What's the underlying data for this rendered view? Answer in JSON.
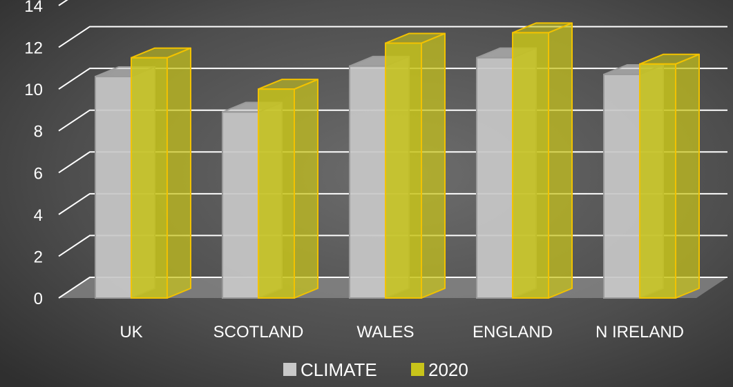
{
  "chart_data": {
    "type": "bar",
    "categories": [
      "UK",
      "SCOTLAND",
      "WALES",
      "ENGLAND",
      "N IRELAND"
    ],
    "series": [
      {
        "name": "CLIMATE",
        "values": [
          10.6,
          8.9,
          11.1,
          11.5,
          10.7
        ],
        "color": "#c8c8c8"
      },
      {
        "name": "2020",
        "values": [
          11.5,
          10.0,
          12.2,
          12.7,
          11.2
        ],
        "color": "#c8c41a"
      }
    ],
    "ylim": [
      0,
      14
    ],
    "yticks": [
      0,
      2,
      4,
      6,
      8,
      10,
      12,
      14
    ],
    "grid": true,
    "legend_position": "bottom",
    "style": "3d-clustered-column",
    "colors": {
      "background": "#4a4a4a",
      "grid": "#ffffff",
      "text": "#ffffff",
      "outline_2020": "#f2c200",
      "floor": "#8a8a8a"
    }
  }
}
